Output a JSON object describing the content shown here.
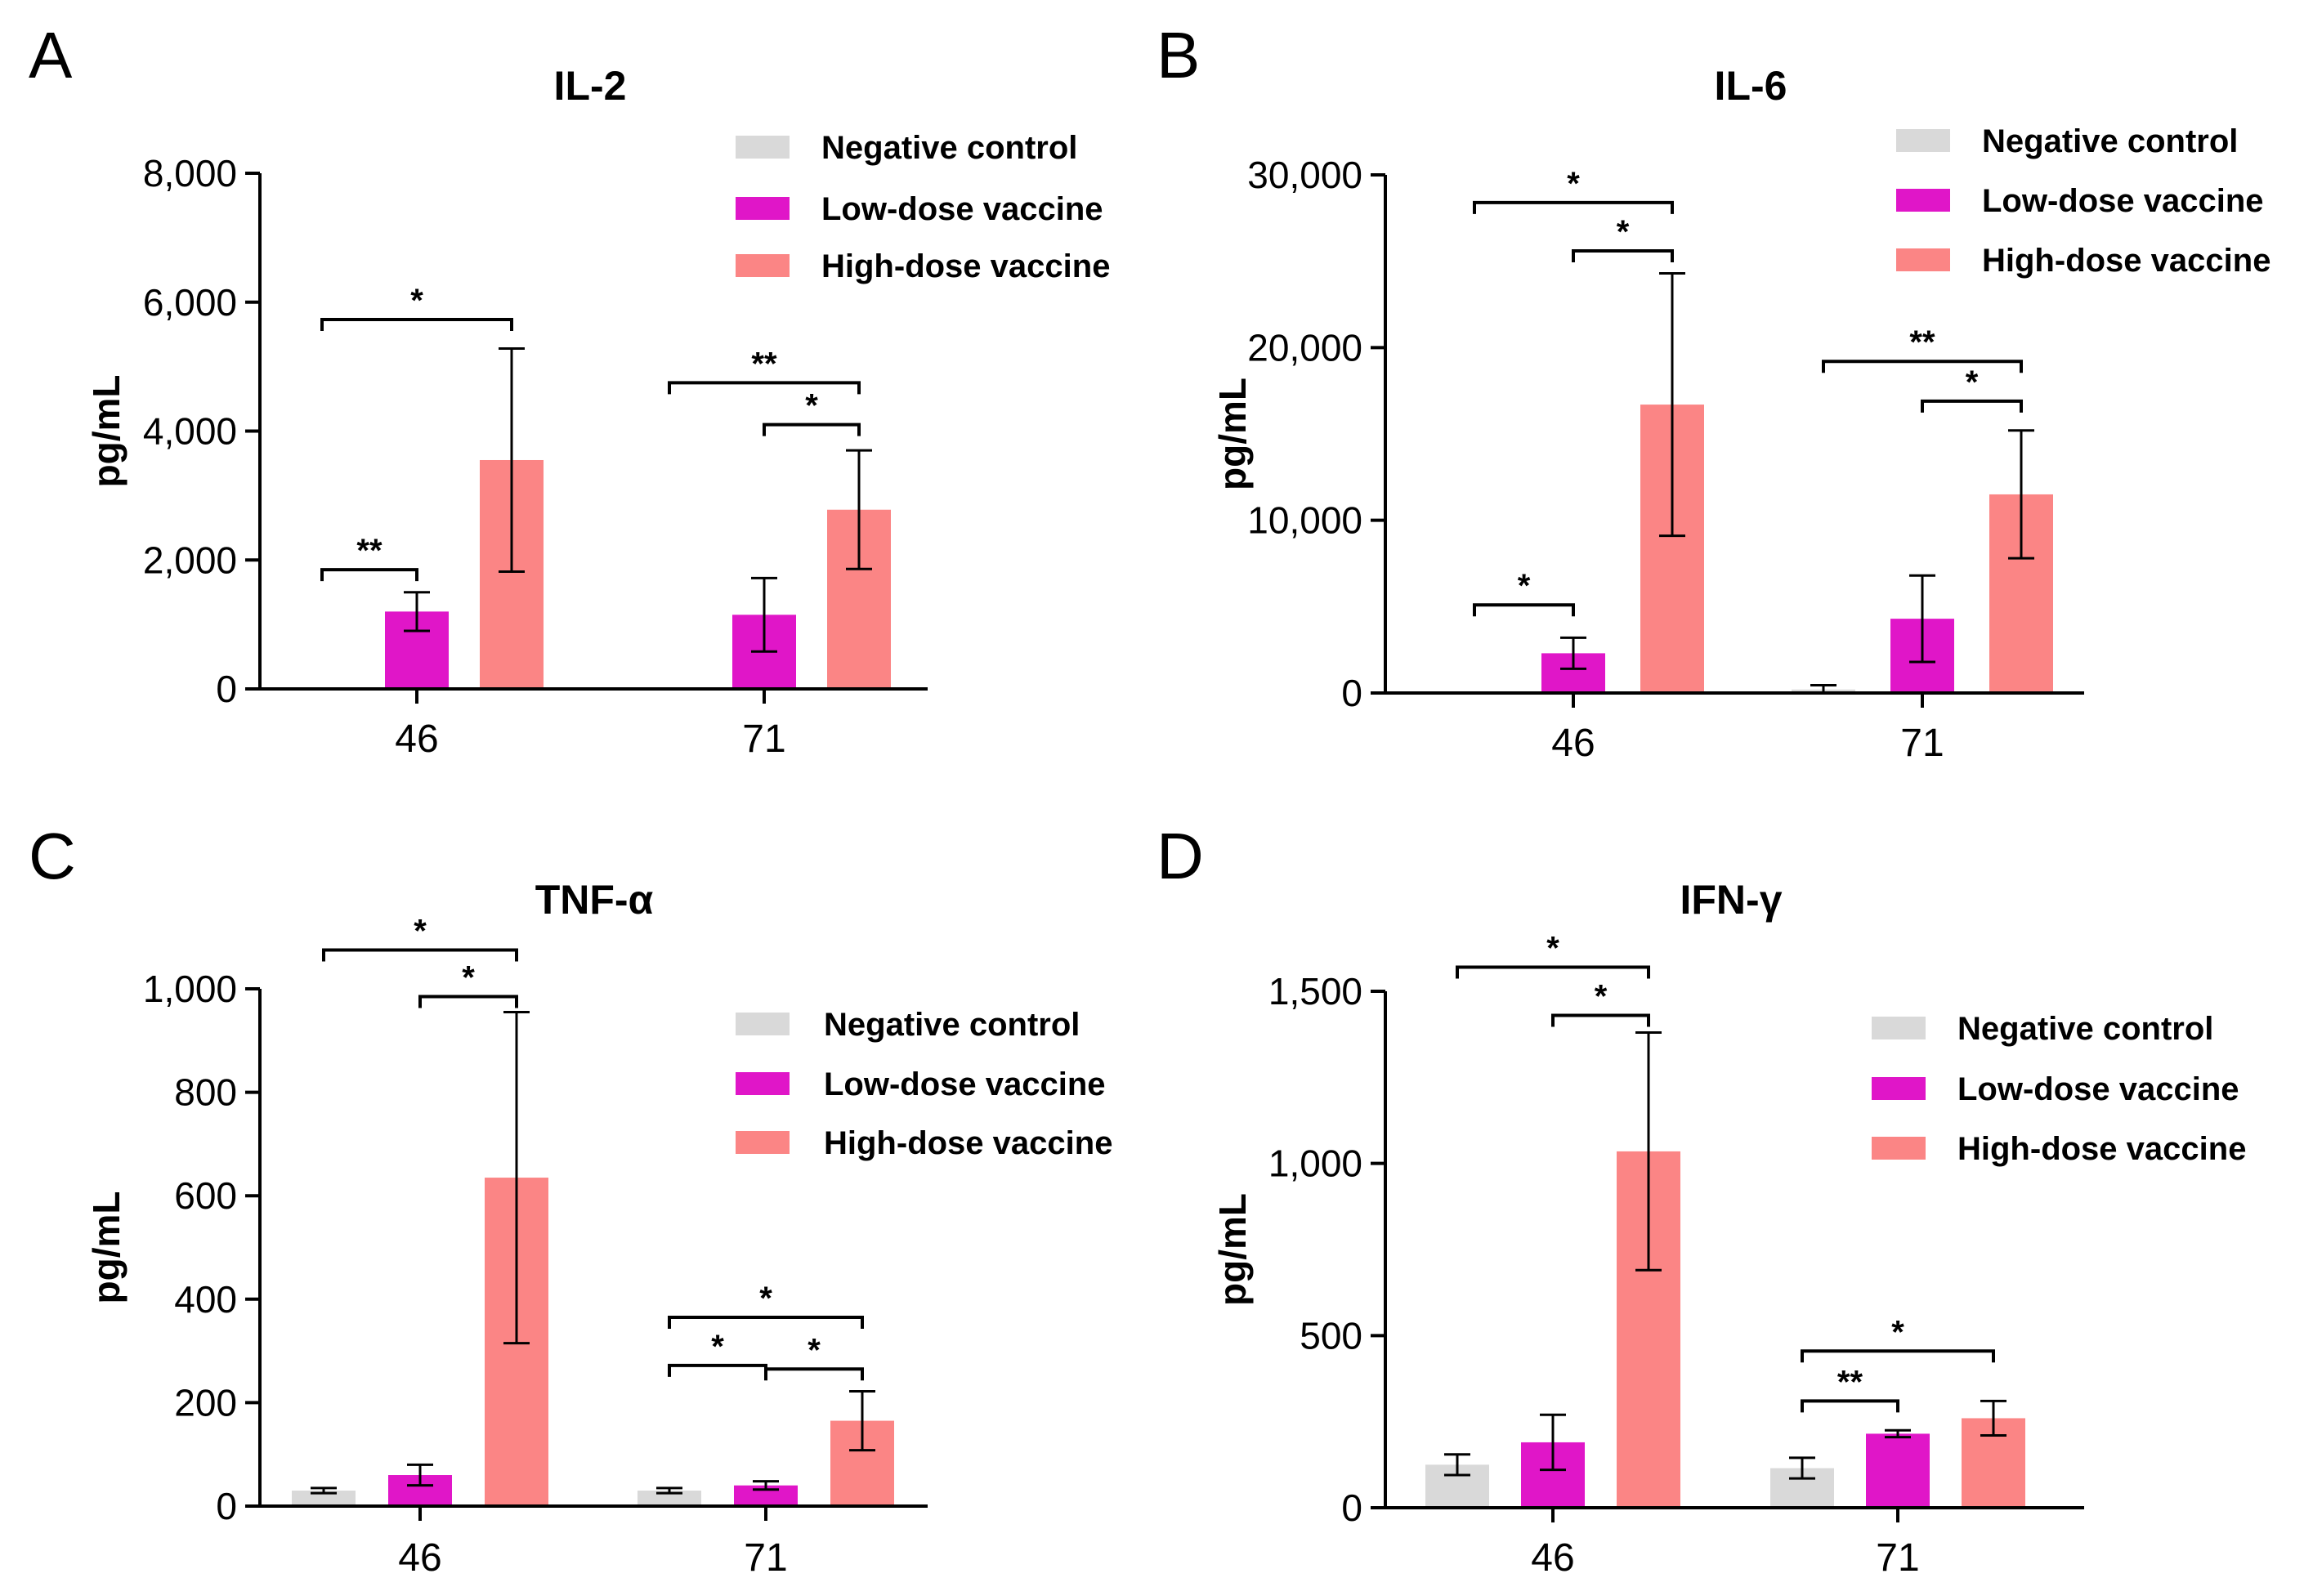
{
  "figure": {
    "series_names": [
      "Negative control",
      "Low-dose vaccine",
      "High-dose vaccine"
    ],
    "colors": {
      "negative_control": "#d9d9d9",
      "low_dose": "#e016c8",
      "high_dose": "#fb8585",
      "axis": "#000000"
    }
  },
  "chart_data": [
    {
      "panel": "A",
      "type": "bar",
      "title": "IL-2",
      "xlabel": "",
      "ylabel": "pg/mL",
      "categories": [
        "46",
        "71"
      ],
      "ylim": [
        0,
        8000
      ],
      "yticks": [
        0,
        2000,
        4000,
        6000,
        8000
      ],
      "ytick_labels": [
        "0",
        "2,000",
        "4,000",
        "6,000",
        "8,000"
      ],
      "legend_position": "top-right",
      "series": [
        {
          "name": "Negative control",
          "values": [
            20,
            0
          ],
          "errors": [
            0,
            0
          ]
        },
        {
          "name": "Low-dose vaccine",
          "values": [
            1200,
            1150
          ],
          "errors": [
            300,
            570
          ]
        },
        {
          "name": "High-dose vaccine",
          "values": [
            3550,
            2780
          ],
          "errors": [
            1730,
            920
          ]
        }
      ],
      "significance": [
        {
          "label": "*",
          "category": 0,
          "from_series": 0,
          "to_series": 2,
          "level": 5730
        },
        {
          "label": "**",
          "category": 0,
          "from_series": 0,
          "to_series": 1,
          "level": 1850
        },
        {
          "label": "**",
          "category": 1,
          "from_series": 0,
          "to_series": 2,
          "level": 4750
        },
        {
          "label": "*",
          "category": 1,
          "from_series": 1,
          "to_series": 2,
          "level": 4100
        }
      ]
    },
    {
      "panel": "B",
      "type": "bar",
      "title": "IL-6",
      "xlabel": "",
      "ylabel": "pg/mL",
      "categories": [
        "46",
        "71"
      ],
      "ylim": [
        0,
        30000
      ],
      "yticks": [
        0,
        10000,
        20000,
        30000
      ],
      "ytick_labels": [
        "0",
        "10,000",
        "20,000",
        "30,000"
      ],
      "legend_position": "top-right",
      "series": [
        {
          "name": "Negative control",
          "values": [
            0,
            200
          ],
          "errors": [
            0,
            250
          ]
        },
        {
          "name": "Low-dose vaccine",
          "values": [
            2300,
            4300
          ],
          "errors": [
            900,
            2500
          ]
        },
        {
          "name": "High-dose vaccine",
          "values": [
            16700,
            11500
          ],
          "errors": [
            7600,
            3700
          ]
        }
      ],
      "significance": [
        {
          "label": "*",
          "category": 0,
          "from_series": 0,
          "to_series": 2,
          "level": 28400
        },
        {
          "label": "*",
          "category": 0,
          "from_series": 1,
          "to_series": 2,
          "level": 25600
        },
        {
          "label": "*",
          "category": 0,
          "from_series": 0,
          "to_series": 1,
          "level": 5100
        },
        {
          "label": "**",
          "category": 1,
          "from_series": 0,
          "to_series": 2,
          "level": 19200
        },
        {
          "label": "*",
          "category": 1,
          "from_series": 1,
          "to_series": 2,
          "level": 16900
        }
      ]
    },
    {
      "panel": "C",
      "type": "bar",
      "title": "TNF-α",
      "xlabel": "",
      "ylabel": "pg/mL",
      "categories": [
        "46",
        "71"
      ],
      "ylim": [
        0,
        1000
      ],
      "yticks": [
        0,
        200,
        400,
        600,
        800,
        1000
      ],
      "ytick_labels": [
        "0",
        "200",
        "400",
        "600",
        "800",
        "1,000"
      ],
      "legend_position": "top-right",
      "series": [
        {
          "name": "Negative control",
          "values": [
            30,
            30
          ],
          "errors": [
            5,
            5
          ]
        },
        {
          "name": "Low-dose vaccine",
          "values": [
            60,
            40
          ],
          "errors": [
            20,
            8
          ]
        },
        {
          "name": "High-dose vaccine",
          "values": [
            635,
            165
          ],
          "errors": [
            320,
            57
          ]
        }
      ],
      "significance": [
        {
          "label": "*",
          "category": 0,
          "from_series": 0,
          "to_series": 2,
          "level": 1075
        },
        {
          "label": "*",
          "category": 0,
          "from_series": 1,
          "to_series": 2,
          "level": 985
        },
        {
          "label": "*",
          "category": 1,
          "from_series": 0,
          "to_series": 2,
          "level": 365
        },
        {
          "label": "*",
          "category": 1,
          "from_series": 0,
          "to_series": 1,
          "level": 272
        },
        {
          "label": "*",
          "category": 1,
          "from_series": 1,
          "to_series": 2,
          "level": 265
        }
      ]
    },
    {
      "panel": "D",
      "type": "bar",
      "title": "IFN-γ",
      "xlabel": "",
      "ylabel": "pg/mL",
      "categories": [
        "46",
        "71"
      ],
      "ylim": [
        0,
        1500
      ],
      "yticks": [
        0,
        500,
        1000,
        1500
      ],
      "ytick_labels": [
        "0",
        "500",
        "1,000",
        "1,500"
      ],
      "legend_position": "top-right",
      "series": [
        {
          "name": "Negative control",
          "values": [
            125,
            115
          ],
          "errors": [
            30,
            30
          ]
        },
        {
          "name": "Low-dose vaccine",
          "values": [
            190,
            215
          ],
          "errors": [
            80,
            10
          ]
        },
        {
          "name": "High-dose vaccine",
          "values": [
            1035,
            260
          ],
          "errors": [
            345,
            50
          ]
        }
      ],
      "significance": [
        {
          "label": "*",
          "category": 0,
          "from_series": 0,
          "to_series": 2,
          "level": 1570
        },
        {
          "label": "*",
          "category": 0,
          "from_series": 1,
          "to_series": 2,
          "level": 1430
        },
        {
          "label": "*",
          "category": 1,
          "from_series": 0,
          "to_series": 2,
          "level": 455
        },
        {
          "label": "**",
          "category": 1,
          "from_series": 0,
          "to_series": 1,
          "level": 310
        }
      ]
    }
  ]
}
